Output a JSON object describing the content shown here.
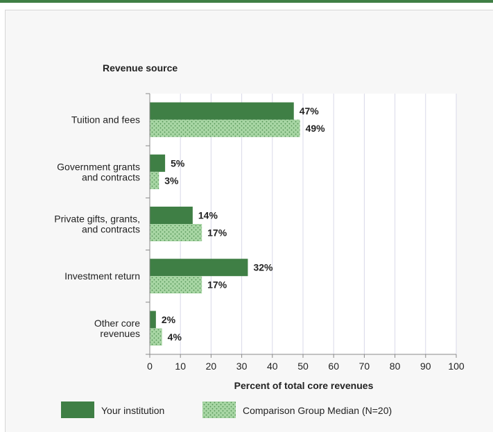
{
  "chart_data": {
    "type": "bar",
    "orientation": "horizontal",
    "title": "Revenue source",
    "xlabel": "Percent of total core revenues",
    "xlim": [
      0,
      100
    ],
    "xticks": [
      "0",
      "10",
      "20",
      "30",
      "40",
      "50",
      "60",
      "70",
      "80",
      "90",
      "100"
    ],
    "categories": [
      [
        "Tuition and fees"
      ],
      [
        "Government grants",
        "and contracts"
      ],
      [
        "Private gifts, grants,",
        "and contracts"
      ],
      [
        "Investment return"
      ],
      [
        "Other core",
        "revenues"
      ]
    ],
    "series": [
      {
        "name": "Your institution",
        "values": [
          47,
          5,
          14,
          32,
          2
        ],
        "labels": [
          "47%",
          "5%",
          "14%",
          "32%",
          "2%"
        ],
        "color": "#3f7f45"
      },
      {
        "name": "Comparison Group Median (N=20)",
        "values": [
          49,
          3,
          17,
          17,
          4
        ],
        "labels": [
          "49%",
          "3%",
          "17%",
          "17%",
          "4%"
        ],
        "color": "#9fd19f"
      }
    ],
    "grid": true,
    "legend": "bottom"
  }
}
